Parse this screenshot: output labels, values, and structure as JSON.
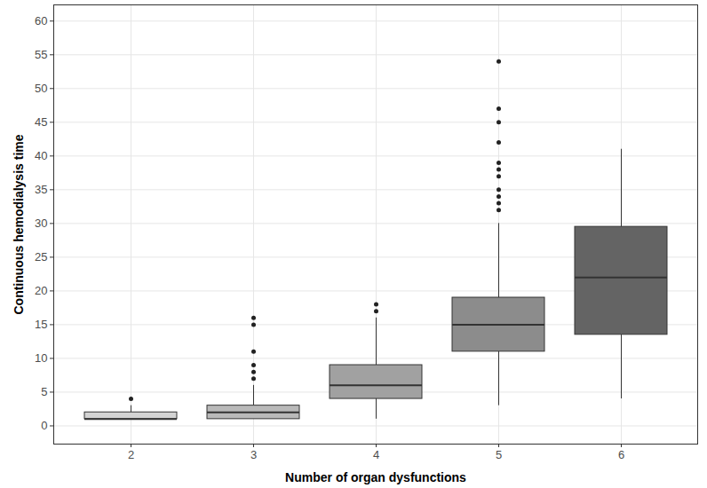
{
  "chart_data": {
    "type": "box",
    "xlabel": "Number of organ dysfunctions",
    "ylabel": "Continuous hemodialysis time",
    "categories": [
      "2",
      "3",
      "4",
      "5",
      "6"
    ],
    "boxes": [
      {
        "min": 1,
        "q1": 1,
        "median": 1,
        "q3": 2,
        "max": 3,
        "outliers": [
          4
        ]
      },
      {
        "min": 1,
        "q1": 1,
        "median": 2,
        "q3": 3,
        "max": 6,
        "outliers": [
          7,
          8,
          9,
          11,
          15,
          16
        ]
      },
      {
        "min": 1,
        "q1": 4,
        "median": 6,
        "q3": 9,
        "max": 16,
        "outliers": [
          17,
          18
        ]
      },
      {
        "min": 3,
        "q1": 11,
        "median": 15,
        "q3": 19,
        "max": 30,
        "outliers": [
          32,
          33,
          34,
          35,
          37,
          38,
          39,
          42,
          45,
          47,
          54
        ]
      },
      {
        "min": 4,
        "q1": 13.5,
        "median": 22,
        "q3": 29.5,
        "max": 41,
        "outliers": []
      }
    ],
    "colors": [
      "#d3d3d3",
      "#b9b9b9",
      "#a1a1a1",
      "#8c8c8c",
      "#646464"
    ],
    "ylim": [
      -2.7,
      62.4
    ],
    "yticks": [
      0,
      5,
      10,
      15,
      20,
      25,
      30,
      35,
      40,
      45,
      50,
      55,
      60
    ],
    "grid": true
  }
}
